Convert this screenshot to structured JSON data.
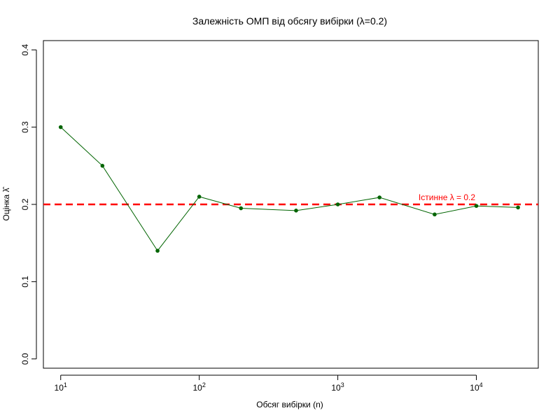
{
  "chart_data": {
    "type": "line",
    "title": "Залежність ОМП від обсягу вибірки (λ=0.2)",
    "xlabel": "Обсяг вибірки (n)",
    "ylabel": "Оцінка λ̂",
    "x_scale": "log10",
    "xlim": [
      7.5,
      28000
    ],
    "ylim": [
      -0.012,
      0.412
    ],
    "x_ticks": [
      10,
      100,
      1000,
      10000
    ],
    "x_tick_labels": [
      {
        "base": "10",
        "exp": "1"
      },
      {
        "base": "10",
        "exp": "2"
      },
      {
        "base": "10",
        "exp": "3"
      },
      {
        "base": "10",
        "exp": "4"
      }
    ],
    "y_ticks": [
      0.0,
      0.1,
      0.2,
      0.3,
      0.4
    ],
    "y_tick_labels": [
      "0.0",
      "0.1",
      "0.2",
      "0.3",
      "0.4"
    ],
    "grid": false,
    "series": [
      {
        "color": "#006400",
        "points": [
          {
            "x": 10,
            "y": 0.3
          },
          {
            "x": 20,
            "y": 0.25
          },
          {
            "x": 50,
            "y": 0.14
          },
          {
            "x": 100,
            "y": 0.21
          },
          {
            "x": 200,
            "y": 0.195
          },
          {
            "x": 500,
            "y": 0.192
          },
          {
            "x": 1000,
            "y": 0.2
          },
          {
            "x": 2000,
            "y": 0.209
          },
          {
            "x": 5000,
            "y": 0.187
          },
          {
            "x": 10000,
            "y": 0.198
          },
          {
            "x": 20000,
            "y": 0.196
          }
        ]
      }
    ],
    "reference_line": {
      "y": 0.2,
      "style": "dashed",
      "color": "#ff0000",
      "label": "Істинне λ = 0.2",
      "label_x": 10000
    }
  }
}
